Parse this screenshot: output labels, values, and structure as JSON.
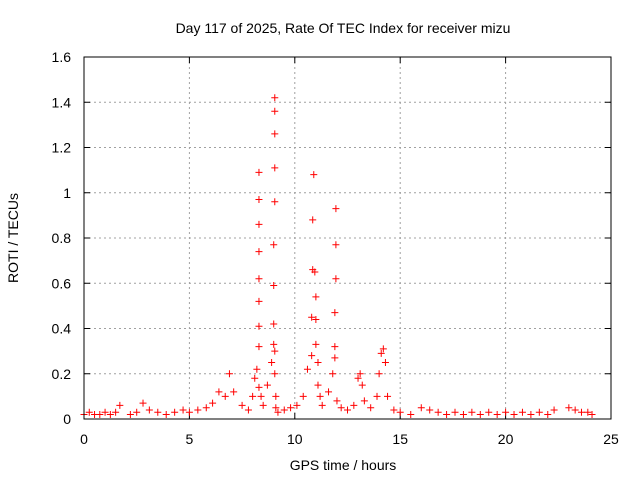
{
  "chart_data": {
    "type": "scatter",
    "title": "Day 117 of 2025, Rate Of TEC Index for receiver mizu",
    "xlabel": "GPS time / hours",
    "ylabel": "ROTI / TECUs",
    "xlim": [
      0,
      25
    ],
    "ylim": [
      0,
      1.6
    ],
    "xticks": [
      "0",
      "5",
      "10",
      "15",
      "20",
      "25"
    ],
    "yticks": [
      "0",
      "0.2",
      "0.4",
      "0.6",
      "0.8",
      "1",
      "1.2",
      "1.4",
      "1.6"
    ],
    "grid": true,
    "marker": "+",
    "color": "#ff0000",
    "series": [
      {
        "x": [
          0.0,
          0.25,
          0.5,
          0.75,
          1.0,
          1.25,
          1.5,
          1.7,
          2.2,
          2.5,
          2.8,
          3.1,
          3.5,
          3.9,
          4.3,
          4.7,
          5.0,
          5.4,
          5.8,
          6.1,
          6.4,
          6.7,
          6.9,
          7.1,
          7.5,
          7.8,
          8.0,
          8.1,
          8.2,
          8.3,
          8.3,
          8.3,
          8.3,
          8.3,
          8.3,
          8.3,
          8.3,
          8.3,
          8.4,
          8.5,
          8.7,
          8.9,
          9.0,
          9.0,
          9.0,
          9.0,
          9.05,
          9.05,
          9.05,
          9.05,
          9.05,
          9.05,
          9.05,
          9.1,
          9.1,
          9.2,
          9.5,
          9.8,
          10.1,
          10.4,
          10.6,
          10.8,
          10.8,
          10.85,
          10.85,
          10.9,
          10.95,
          11.0,
          11.0,
          11.0,
          11.1,
          11.1,
          11.2,
          11.3,
          11.6,
          11.8,
          11.9,
          11.9,
          11.9,
          11.95,
          11.95,
          11.95,
          12.0,
          12.2,
          12.5,
          12.8,
          13.0,
          13.1,
          13.2,
          13.3,
          13.6,
          13.9,
          14.0,
          14.1,
          14.2,
          14.3,
          14.4,
          14.7,
          15.0,
          15.5,
          16.0,
          16.4,
          16.8,
          17.2,
          17.6,
          18.0,
          18.4,
          18.8,
          19.2,
          19.6,
          20.0,
          20.4,
          20.8,
          21.2,
          21.6,
          22.0,
          22.3,
          23.0,
          23.3,
          23.6,
          23.9,
          24.1
        ],
        "y": [
          0.02,
          0.03,
          0.02,
          0.02,
          0.03,
          0.02,
          0.03,
          0.06,
          0.02,
          0.03,
          0.07,
          0.04,
          0.03,
          0.02,
          0.03,
          0.04,
          0.03,
          0.04,
          0.05,
          0.07,
          0.12,
          0.1,
          0.2,
          0.12,
          0.06,
          0.04,
          0.1,
          0.18,
          0.22,
          0.32,
          0.41,
          0.52,
          0.62,
          0.74,
          0.86,
          0.97,
          1.09,
          0.14,
          0.1,
          0.06,
          0.15,
          0.25,
          0.33,
          0.42,
          0.59,
          0.77,
          0.96,
          1.11,
          1.26,
          1.36,
          1.42,
          0.3,
          0.2,
          0.1,
          0.05,
          0.03,
          0.04,
          0.05,
          0.06,
          0.1,
          0.22,
          0.28,
          0.45,
          0.66,
          0.88,
          1.08,
          0.65,
          0.54,
          0.44,
          0.33,
          0.25,
          0.15,
          0.1,
          0.06,
          0.12,
          0.2,
          0.27,
          0.32,
          0.47,
          0.62,
          0.77,
          0.93,
          0.08,
          0.05,
          0.04,
          0.06,
          0.18,
          0.2,
          0.15,
          0.08,
          0.05,
          0.1,
          0.2,
          0.29,
          0.31,
          0.25,
          0.1,
          0.04,
          0.03,
          0.02,
          0.05,
          0.04,
          0.03,
          0.02,
          0.03,
          0.02,
          0.03,
          0.02,
          0.03,
          0.02,
          0.03,
          0.02,
          0.03,
          0.02,
          0.03,
          0.02,
          0.04,
          0.05,
          0.04,
          0.03,
          0.03,
          0.02
        ]
      }
    ]
  }
}
